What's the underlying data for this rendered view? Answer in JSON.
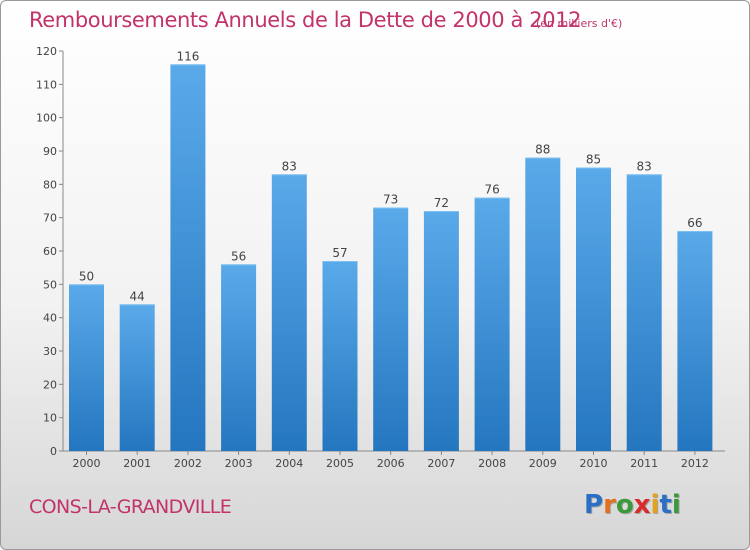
{
  "title": "Remboursements Annuels de la Dette de 2000 à 2012",
  "subtitle": "(en milliers d'€)",
  "commune": "CONS-LA-GRANDVILLE",
  "logo": {
    "letters": [
      "P",
      "r",
      "o",
      "x",
      "i",
      "t",
      "i"
    ],
    "colors": [
      "#2a6fc4",
      "#e2711d",
      "#3a9a3a",
      "#d92b2b",
      "#e2a21d",
      "#2a6fc4",
      "#3a9a3a"
    ]
  },
  "chart_data": {
    "type": "bar",
    "categories": [
      "2000",
      "2001",
      "2002",
      "2003",
      "2004",
      "2005",
      "2006",
      "2007",
      "2008",
      "2009",
      "2010",
      "2011",
      "2012"
    ],
    "values": [
      50,
      44,
      116,
      56,
      83,
      57,
      73,
      72,
      76,
      88,
      85,
      83,
      66
    ],
    "ylim": [
      0,
      120
    ],
    "yticks": [
      0,
      10,
      20,
      30,
      40,
      50,
      60,
      70,
      80,
      90,
      100,
      110,
      120
    ],
    "grid": false,
    "bar_color": "#3a8fd8"
  }
}
